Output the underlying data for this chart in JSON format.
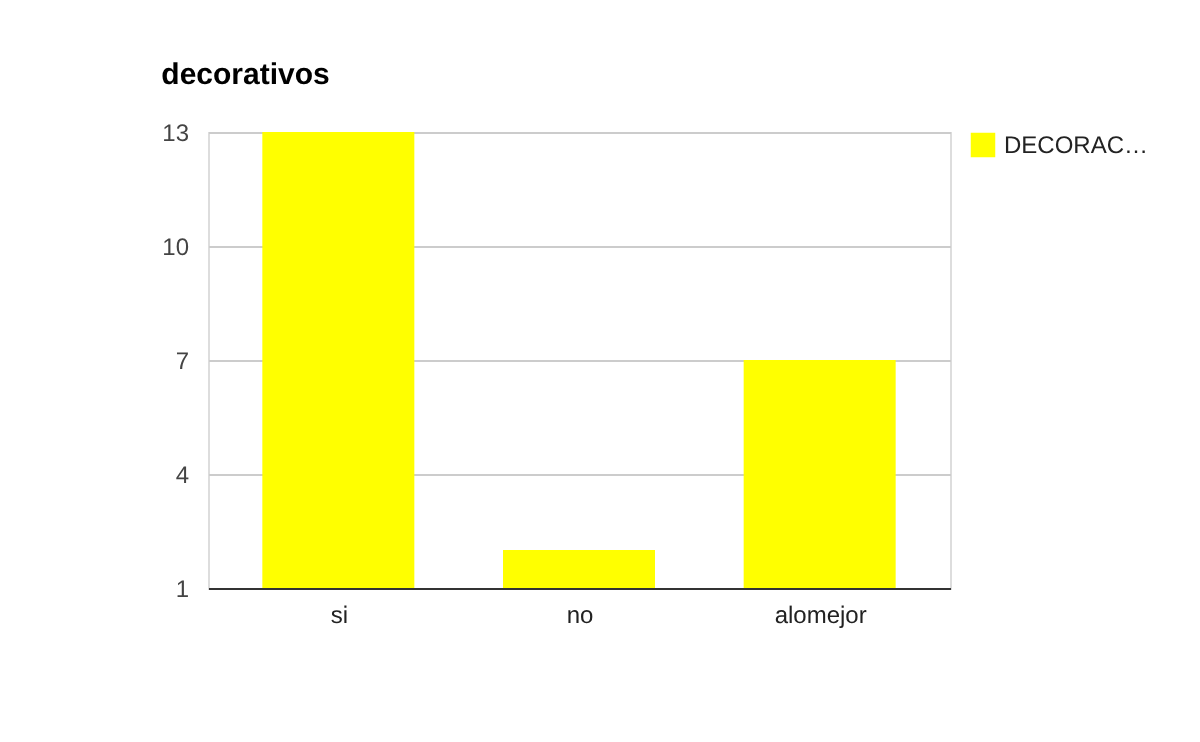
{
  "chart_data": {
    "type": "bar",
    "title": "decorativos",
    "categories": [
      "si",
      "no",
      "alomejor"
    ],
    "series": [
      {
        "name": "DECORAC…",
        "color": "#ffff00",
        "values": [
          13,
          2,
          7
        ]
      }
    ],
    "ylim": [
      1,
      13
    ],
    "yticks": [
      1,
      4,
      7,
      10,
      13
    ],
    "grid": "y",
    "legend": "top right"
  }
}
